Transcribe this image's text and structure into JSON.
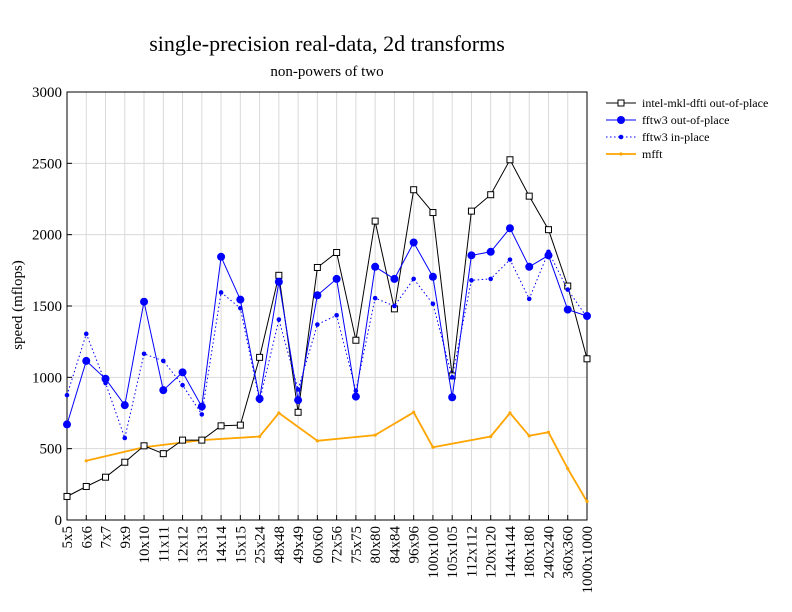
{
  "chart_data": {
    "type": "line",
    "title": "single-precision real-data, 2d transforms",
    "subtitle": "non-powers of two",
    "xlabel": "",
    "ylabel": "speed (mflops)",
    "ylim": [
      0,
      3000
    ],
    "yticks": [
      0,
      500,
      1000,
      1500,
      2000,
      2500,
      3000
    ],
    "grid": true,
    "legend_position": "top-right outside",
    "categories": [
      "5x5",
      "6x6",
      "7x7",
      "9x9",
      "10x10",
      "11x11",
      "12x12",
      "13x13",
      "14x14",
      "15x15",
      "25x24",
      "48x48",
      "49x49",
      "60x60",
      "72x56",
      "75x75",
      "80x80",
      "84x84",
      "96x96",
      "100x100",
      "105x105",
      "112x112",
      "120x120",
      "144x144",
      "180x180",
      "240x240",
      "360x360",
      "1000x1000"
    ],
    "series": [
      {
        "name": "intel-mkl-dfti out-of-place",
        "color": "#000000",
        "marker": "square-open",
        "line": "solid",
        "values": [
          165,
          235,
          300,
          405,
          520,
          465,
          560,
          560,
          660,
          665,
          1140,
          1715,
          755,
          1770,
          1875,
          1260,
          2095,
          1480,
          2315,
          2155,
          1010,
          2165,
          2280,
          2525,
          2270,
          2035,
          1640,
          1130
        ]
      },
      {
        "name": "fftw3 out-of-place",
        "color": "#0000ff",
        "marker": "circle-filled",
        "line": "solid",
        "values": [
          670,
          1115,
          990,
          805,
          1530,
          910,
          1035,
          795,
          1845,
          1545,
          850,
          1670,
          840,
          1575,
          1690,
          865,
          1775,
          1690,
          1945,
          1705,
          860,
          1855,
          1880,
          2045,
          1775,
          1855,
          1475,
          1430
        ]
      },
      {
        "name": "fftw3 in-place",
        "color": "#0000ff",
        "marker": "dot-small",
        "line": "dotted",
        "values": [
          875,
          1305,
          960,
          575,
          1165,
          1115,
          945,
          740,
          1595,
          1485,
          835,
          1405,
          915,
          1370,
          1435,
          905,
          1555,
          1500,
          1690,
          1515,
          1000,
          1680,
          1690,
          1825,
          1550,
          1880,
          1615,
          1420
        ]
      },
      {
        "name": "mfft",
        "color": "#ffa500",
        "marker": "dot-tiny",
        "line": "solid",
        "values": [
          null,
          415,
          null,
          null,
          510,
          null,
          null,
          560,
          null,
          null,
          585,
          750,
          null,
          555,
          null,
          null,
          595,
          null,
          755,
          510,
          null,
          null,
          585,
          750,
          590,
          615,
          360,
          130
        ]
      }
    ]
  }
}
